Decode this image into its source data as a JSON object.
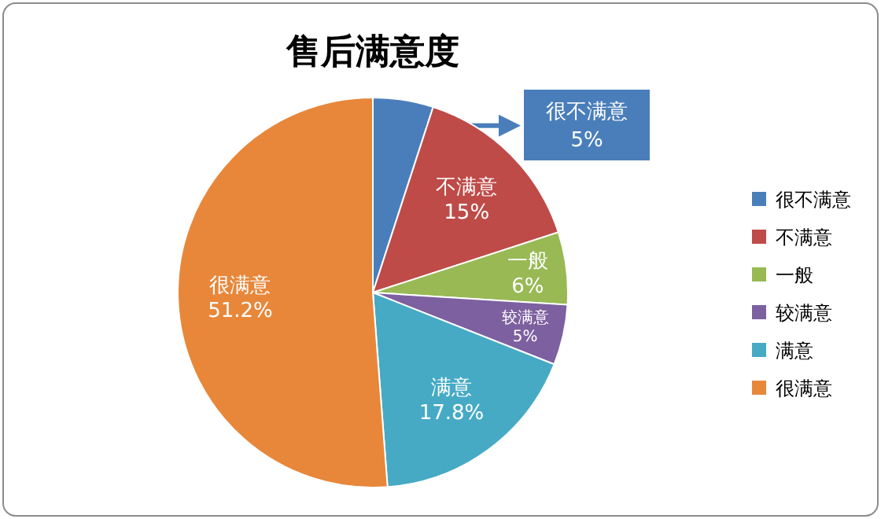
{
  "chart_data": {
    "type": "pie",
    "title": "售后满意度",
    "categories": [
      "很不满意",
      "不满意",
      "一般",
      "较满意",
      "满意",
      "很满意"
    ],
    "values": [
      5,
      15,
      6,
      5,
      17.8,
      51.2
    ],
    "colors": [
      "#4a7ebb",
      "#be4b48",
      "#98b954",
      "#7d60a0",
      "#46aac5",
      "#e8873a"
    ],
    "value_labels": [
      "5%",
      "15%",
      "6%",
      "5%",
      "17.8%",
      "51.2%"
    ],
    "legend": "right"
  }
}
